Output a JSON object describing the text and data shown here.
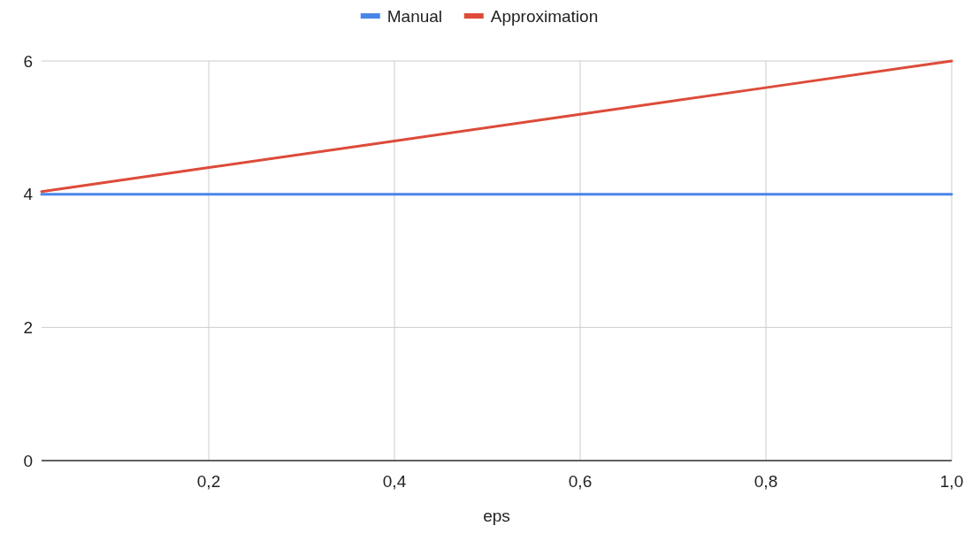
{
  "chart_data": {
    "type": "line",
    "xlabel": "eps",
    "xlim": [
      0.02,
      1.0
    ],
    "ylim": [
      0,
      6
    ],
    "xticks": [
      {
        "value": 0.2,
        "label": "0,2"
      },
      {
        "value": 0.4,
        "label": "0,4"
      },
      {
        "value": 0.6,
        "label": "0,6"
      },
      {
        "value": 0.8,
        "label": "0,8"
      },
      {
        "value": 1.0,
        "label": "1,0"
      }
    ],
    "yticks": [
      0,
      2,
      4,
      6
    ],
    "grid": true,
    "legend": "top",
    "marker": "none",
    "line_style": "solid",
    "series": [
      {
        "name": "Manual",
        "color": "#4a86e8",
        "x": [
          0.02,
          0.2,
          0.4,
          0.6,
          0.8,
          1.0
        ],
        "values": [
          4,
          4,
          4,
          4,
          4,
          4
        ]
      },
      {
        "name": "Approximation",
        "color": "#dd4b39",
        "x": [
          0.02,
          0.2,
          0.4,
          0.6,
          0.8,
          1.0
        ],
        "values": [
          4.04,
          4.4,
          4.8,
          5.2,
          5.6,
          6
        ]
      }
    ]
  }
}
